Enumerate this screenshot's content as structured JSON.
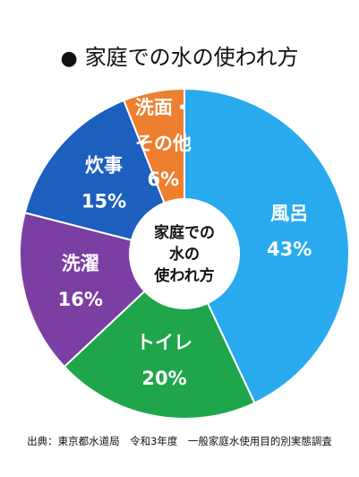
{
  "title": "家庭での水の使われ方",
  "title_bullet": "●",
  "source": "出典：東京都水道局　令和3年度　一般家庭水使用目的別実態調査",
  "chart_data": {
    "type": "pie",
    "title": "家庭での水の使われ方",
    "center_label": [
      "家庭での",
      "水の",
      "使われ方"
    ],
    "slices": [
      {
        "label_lines": [
          "風呂"
        ],
        "value": 43,
        "value_text": "43%",
        "color": "#29aaef"
      },
      {
        "label_lines": [
          "トイレ"
        ],
        "value": 20,
        "value_text": "20%",
        "color": "#1fa54a"
      },
      {
        "label_lines": [
          "洗濯"
        ],
        "value": 16,
        "value_text": "16%",
        "color": "#7b3fa4"
      },
      {
        "label_lines": [
          "炊事"
        ],
        "value": 15,
        "value_text": "15%",
        "color": "#1c5fbf"
      },
      {
        "label_lines": [
          "洗面・",
          "その他"
        ],
        "value": 6,
        "value_text": "6%",
        "color": "#ee7f2f"
      }
    ]
  }
}
